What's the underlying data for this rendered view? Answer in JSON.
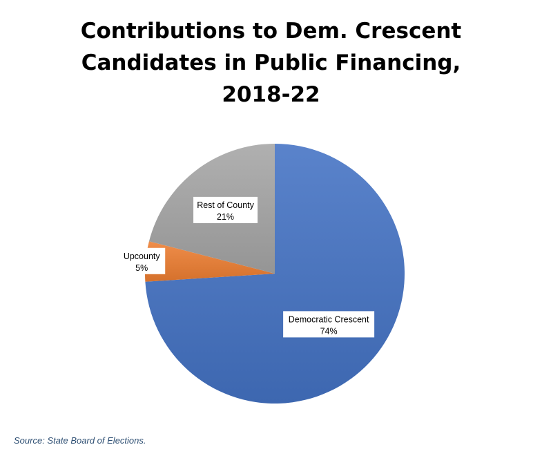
{
  "title_lines": [
    "Contributions to Dem. Crescent",
    "Candidates in Public Financing,",
    "2018-22"
  ],
  "source": "Source: State Board of Elections.",
  "chart_data": {
    "type": "pie",
    "title": "Contributions to Dem. Crescent Candidates in Public Financing, 2018-22",
    "slices": [
      {
        "label": "Democratic Crescent",
        "value": 74,
        "value_label": "74%",
        "color": "#4472c4"
      },
      {
        "label": "Upcounty",
        "value": 5,
        "value_label": "5%",
        "color": "#ed7d31"
      },
      {
        "label": "Rest of County",
        "value": 21,
        "value_label": "21%",
        "color": "#a5a5a5"
      }
    ],
    "start": "12 o'clock",
    "direction": "clockwise",
    "legend": "none"
  }
}
